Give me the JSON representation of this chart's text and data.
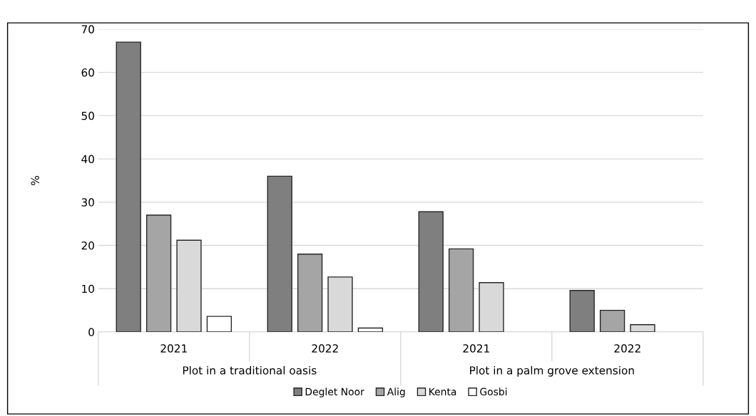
{
  "chart_data": {
    "type": "bar",
    "ylabel": "%",
    "categories": [
      "2021",
      "2022",
      "2021",
      "2022"
    ],
    "series": [
      {
        "name": "Deglet Noor",
        "color": "#7f7f7f",
        "values": [
          67,
          36,
          27.8,
          9.6
        ]
      },
      {
        "name": "Alig",
        "color": "#a5a5a5",
        "values": [
          27,
          18,
          19.2,
          5.0
        ]
      },
      {
        "name": "Kenta",
        "color": "#d9d9d9",
        "values": [
          21.2,
          12.7,
          11.4,
          1.7
        ]
      },
      {
        "name": "Gosbi",
        "color": "#ffffff",
        "values": [
          3.6,
          0.9,
          null,
          null
        ]
      }
    ],
    "ylim": [
      0,
      70
    ],
    "yticks": [
      0,
      10,
      20,
      30,
      40,
      50,
      60,
      70
    ],
    "grid": "y",
    "legend": "bottom",
    "annotations": [
      "Plot in a traditional oasis",
      "Plot in a palm grove extension"
    ]
  }
}
